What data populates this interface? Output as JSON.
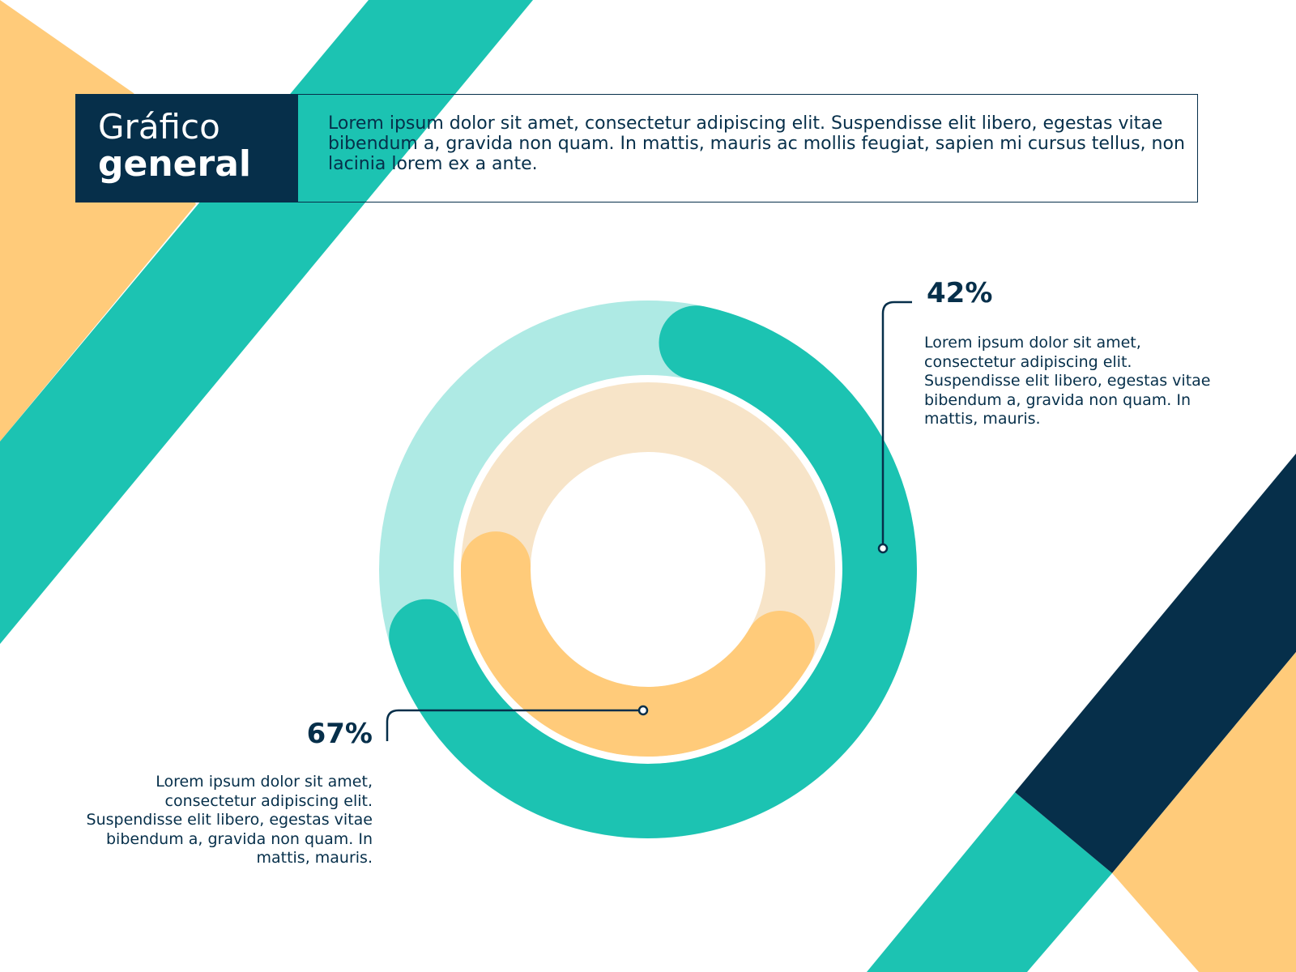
{
  "header": {
    "title_line1": "Gráfico",
    "title_line2": "general",
    "description": "Lorem ipsum dolor sit amet, consectetur adipiscing elit. Suspendisse elit libero, egestas vitae bibendum a, gravida non quam. In mattis, mauris ac mollis feugiat, sapien mi cursus tellus, non lacinia lorem ex a ante."
  },
  "colors": {
    "navy": "#062f4a",
    "teal": "#1cc3b2",
    "teal_light": "#aeeae4",
    "yellow": "#ffcb7a",
    "yellow_light": "#f7e4c8"
  },
  "chart_data": {
    "type": "radial-progress",
    "series": [
      {
        "ring": "outer",
        "value": 67,
        "label": "67%",
        "description": "Lorem ipsum dolor sit amet, consectetur adipiscing elit. Suspendisse elit libero, egestas vitae bibendum a, gravida non quam. In mattis, mauris.",
        "color": "#1cc3b2",
        "track_color": "#aeeae4"
      },
      {
        "ring": "inner",
        "value": 42,
        "label": "42%",
        "description": "Lorem ipsum dolor sit amet, consectetur adipiscing elit. Suspendisse elit libero, egestas vitae bibendum a, gravida non quam. In mattis, mauris.",
        "color": "#ffcb7a",
        "track_color": "#f7e4c8"
      }
    ]
  }
}
